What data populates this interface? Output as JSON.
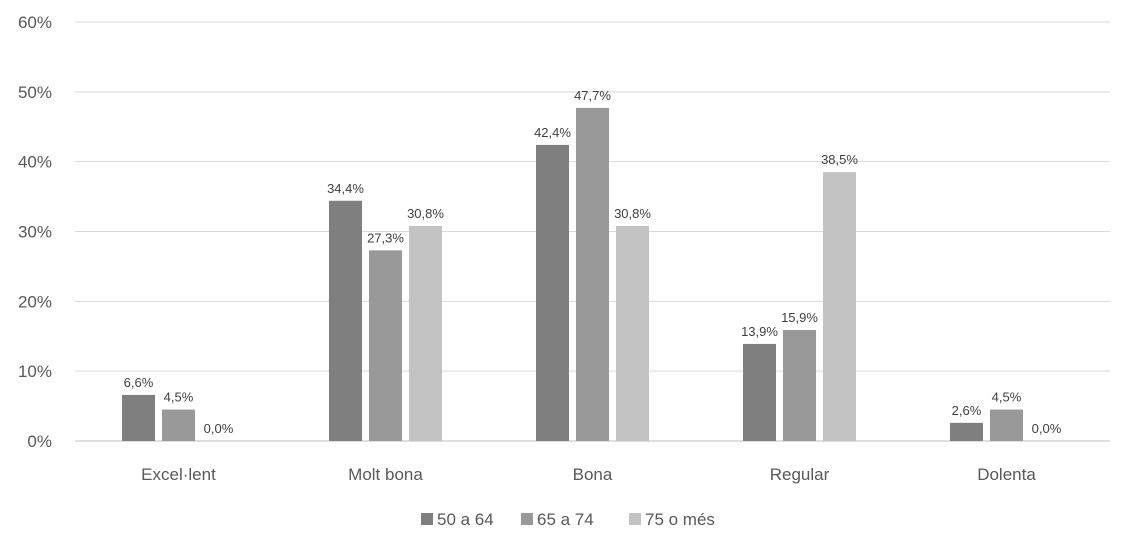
{
  "chart_data": {
    "type": "bar",
    "categories": [
      "Excel·lent",
      "Molt bona",
      "Bona",
      "Regular",
      "Dolenta"
    ],
    "series": [
      {
        "name": "50 a 64",
        "color": "#7f7f7f",
        "values": [
          6.6,
          34.4,
          42.4,
          13.9,
          2.6
        ],
        "labels": [
          "6,6%",
          "34,4%",
          "42,4%",
          "13,9%",
          "2,6%"
        ]
      },
      {
        "name": "65 a 74",
        "color": "#999999",
        "values": [
          4.5,
          27.3,
          47.7,
          15.9,
          4.5
        ],
        "labels": [
          "4,5%",
          "27,3%",
          "47,7%",
          "15,9%",
          "4,5%"
        ]
      },
      {
        "name": "75 o més",
        "color": "#c3c3c3",
        "values": [
          0.0,
          30.8,
          30.8,
          38.5,
          0.0
        ],
        "labels": [
          "0,0%",
          "30,8%",
          "30,8%",
          "38,5%",
          "0,0%"
        ]
      }
    ],
    "ylim": [
      0,
      60
    ],
    "yticks": [
      0,
      10,
      20,
      30,
      40,
      50,
      60
    ],
    "ytick_labels": [
      "0%",
      "10%",
      "20%",
      "30%",
      "40%",
      "50%",
      "60%"
    ],
    "grid": true,
    "legend_position": "bottom"
  }
}
